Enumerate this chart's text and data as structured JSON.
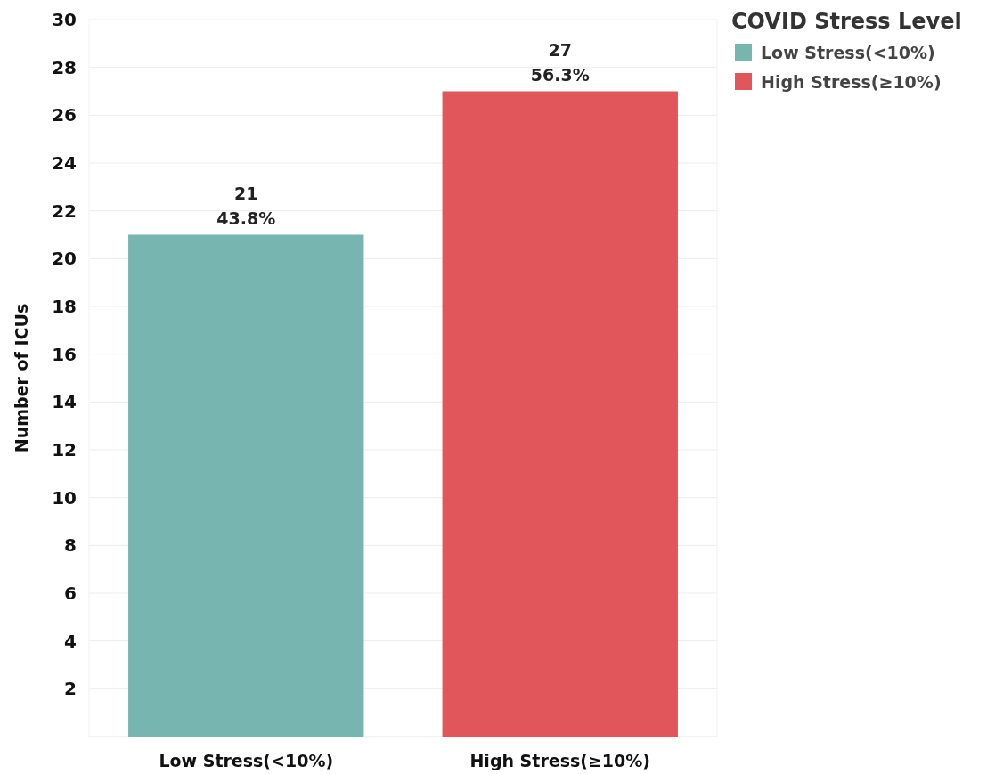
{
  "chart_data": {
    "type": "bar",
    "ylabel": "Number of ICUs",
    "legend_title": "COVID Stress Level",
    "legend": "top right",
    "categories": [
      "Low Stress(<10%)",
      "High Stress(≥10%)"
    ],
    "series": [
      {
        "name": "Low Stress(<10%)",
        "color": "#76b5b0",
        "values": [
          21,
          null
        ],
        "value_labels": [
          "21\n43.8%",
          null
        ]
      },
      {
        "name": "High Stress(≥10%)",
        "color": "#e0565a",
        "values": [
          null,
          27
        ],
        "value_labels": [
          null,
          "27\n56.3%"
        ]
      }
    ],
    "ylim": [
      0,
      30
    ],
    "yticks": [
      2,
      4,
      6,
      8,
      10,
      12,
      14,
      16,
      18,
      20,
      22,
      24,
      26,
      28,
      30
    ],
    "grid": "y"
  }
}
